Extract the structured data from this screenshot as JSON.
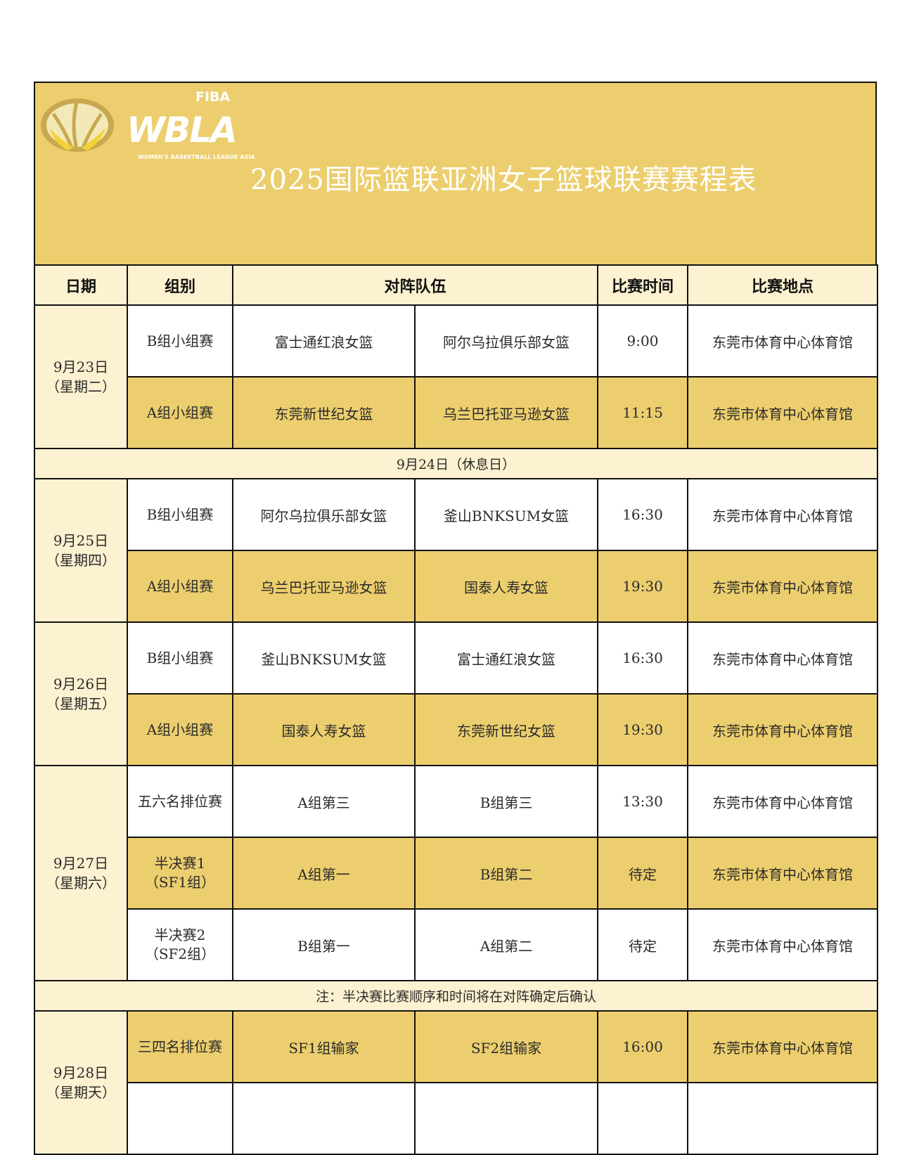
{
  "logo": {
    "top": "FIBA",
    "main": "WBLA",
    "sub": "WOMEN'S BASKETBALL LEAGUE ASIA"
  },
  "title": "2025国际篮联亚洲女子篮球联赛赛程表",
  "colors": {
    "gold": "#ecce6e",
    "pale": "#fcf1d0",
    "white": "#ffffff"
  },
  "headers": [
    "日期",
    "组别",
    "对阵队伍",
    "比赛时间",
    "比赛地点"
  ],
  "rows": [
    {
      "type": "day",
      "date": "9月23日",
      "weekday": "（星期二）",
      "matches": [
        {
          "stage": [
            "B组小组赛"
          ],
          "team1": "富士通红浪女篮",
          "team2": "阿尔乌拉俱乐部女篮",
          "time": "9:00",
          "venue": "东莞市体育中心体育馆",
          "fill": "white"
        },
        {
          "stage": [
            "A组小组赛"
          ],
          "team1": "东莞新世纪女篮",
          "team2": "乌兰巴托亚马逊女篮",
          "time": "11:15",
          "venue": "东莞市体育中心体育馆",
          "fill": "gold"
        }
      ]
    },
    {
      "type": "note",
      "text": "9月24日（休息日）"
    },
    {
      "type": "day",
      "date": "9月25日",
      "weekday": "（星期四）",
      "matches": [
        {
          "stage": [
            "B组小组赛"
          ],
          "team1": "阿尔乌拉俱乐部女篮",
          "team2": "釜山BNKSUM女篮",
          "time": "16:30",
          "venue": "东莞市体育中心体育馆",
          "fill": "white"
        },
        {
          "stage": [
            "A组小组赛"
          ],
          "team1": "乌兰巴托亚马逊女篮",
          "team2": "国泰人寿女篮",
          "time": "19:30",
          "venue": "东莞市体育中心体育馆",
          "fill": "gold"
        }
      ]
    },
    {
      "type": "day",
      "date": "9月26日",
      "weekday": "（星期五）",
      "matches": [
        {
          "stage": [
            "B组小组赛"
          ],
          "team1": "釜山BNKSUM女篮",
          "team2": "富士通红浪女篮",
          "time": "16:30",
          "venue": "东莞市体育中心体育馆",
          "fill": "white"
        },
        {
          "stage": [
            "A组小组赛"
          ],
          "team1": "国泰人寿女篮",
          "team2": "东莞新世纪女篮",
          "time": "19:30",
          "venue": "东莞市体育中心体育馆",
          "fill": "gold"
        }
      ]
    },
    {
      "type": "day",
      "date": "9月27日",
      "weekday": "（星期六）",
      "matches": [
        {
          "stage": [
            "五六名排位赛"
          ],
          "team1": "A组第三",
          "team2": "B组第三",
          "time": "13:30",
          "venue": "东莞市体育中心体育馆",
          "fill": "white"
        },
        {
          "stage": [
            "半决赛1",
            "（SF1组）"
          ],
          "team1": "A组第一",
          "team2": "B组第二",
          "time": "待定",
          "venue": "东莞市体育中心体育馆",
          "fill": "gold"
        },
        {
          "stage": [
            "半决赛2",
            "（SF2组）"
          ],
          "team1": "B组第一",
          "team2": "A组第二",
          "time": "待定",
          "venue": "东莞市体育中心体育馆",
          "fill": "white"
        }
      ]
    },
    {
      "type": "note",
      "text": "注：半决赛比赛顺序和时间将在对阵确定后确认"
    },
    {
      "type": "day",
      "date": "9月28日",
      "weekday": "（星期天）",
      "matches": [
        {
          "stage": [
            "三四名排位赛"
          ],
          "team1": "SF1组输家",
          "team2": "SF2组输家",
          "time": "16:00",
          "venue": "东莞市体育中心体育馆",
          "fill": "gold"
        },
        {
          "stage": [
            ""
          ],
          "team1": "",
          "team2": "",
          "time": "",
          "venue": "",
          "fill": "white"
        }
      ]
    }
  ]
}
